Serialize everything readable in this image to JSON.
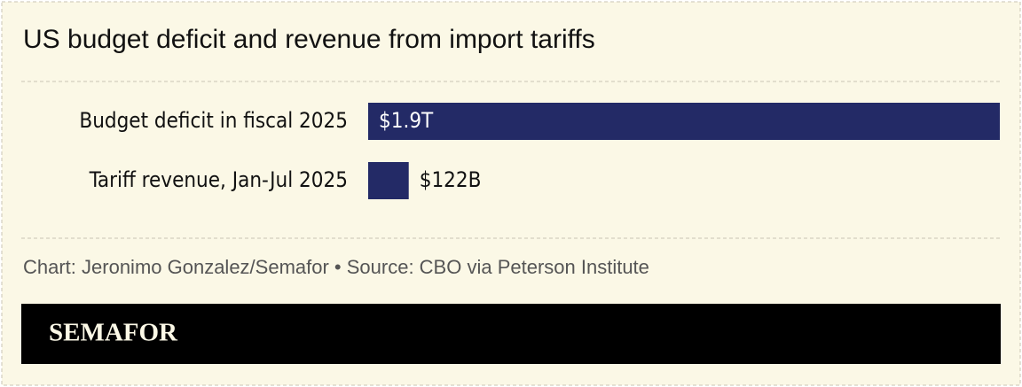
{
  "chart_data": {
    "type": "bar",
    "orientation": "horizontal",
    "title": "US budget deficit and revenue from import tariffs",
    "categories": [
      "Budget deficit in fiscal 2025",
      "Tariff revenue, Jan-Jul 2025"
    ],
    "values": [
      1900,
      122
    ],
    "value_labels": [
      "$1.9T",
      "$122B"
    ],
    "color": "#232a66",
    "source": "Chart: Jeronimo Gonzalez/Semafor • Source: CBO via Peterson Institute",
    "brand": "SEMAFOR"
  }
}
